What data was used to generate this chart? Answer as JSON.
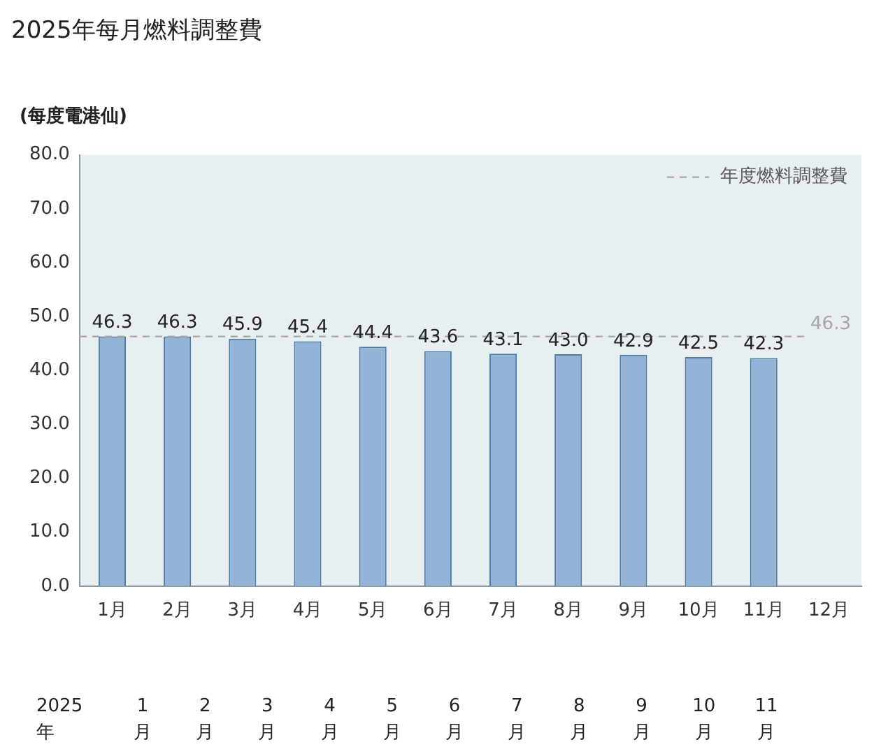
{
  "chart_data": {
    "type": "bar",
    "title": "2025年每月燃料調整費",
    "ylabel": "(每度電港仙)",
    "categories": [
      "1月",
      "2月",
      "3月",
      "4月",
      "5月",
      "6月",
      "7月",
      "8月",
      "9月",
      "10月",
      "11月",
      "12月"
    ],
    "values": [
      46.3,
      46.3,
      45.9,
      45.4,
      44.4,
      43.6,
      43.1,
      43.0,
      42.9,
      42.5,
      42.3,
      null
    ],
    "color": "#95b3d7",
    "value_labels": [
      "46.3",
      "46.3",
      "45.9",
      "45.4",
      "44.4",
      "43.6",
      "43.1",
      "43.0",
      "42.9",
      "42.5",
      "42.3",
      null
    ],
    "ylim": [
      0,
      80
    ],
    "yticks": [
      {
        "value": 0,
        "label": "0.0"
      },
      {
        "value": 10,
        "label": "10.0"
      },
      {
        "value": 20,
        "label": "20.0"
      },
      {
        "value": 30,
        "label": "30.0"
      },
      {
        "value": 40,
        "label": "40.0"
      },
      {
        "value": 50,
        "label": "50.0"
      },
      {
        "value": 60,
        "label": "60.0"
      },
      {
        "value": 70,
        "label": "70.0"
      },
      {
        "value": 80,
        "label": "80.0"
      }
    ],
    "grid": false,
    "legend": "top right",
    "ref_lines": [
      {
        "axis": "y",
        "value": 46.3,
        "label": "年度燃料調整費",
        "color": "#a6a6a6",
        "line_style": "dashed"
      }
    ],
    "annotations": [
      "46.3",
      "2025年",
      "1月",
      "2月",
      "3月",
      "4月",
      "5月",
      "6月",
      "7月",
      "8月",
      "9月",
      "10月",
      "11月"
    ]
  }
}
